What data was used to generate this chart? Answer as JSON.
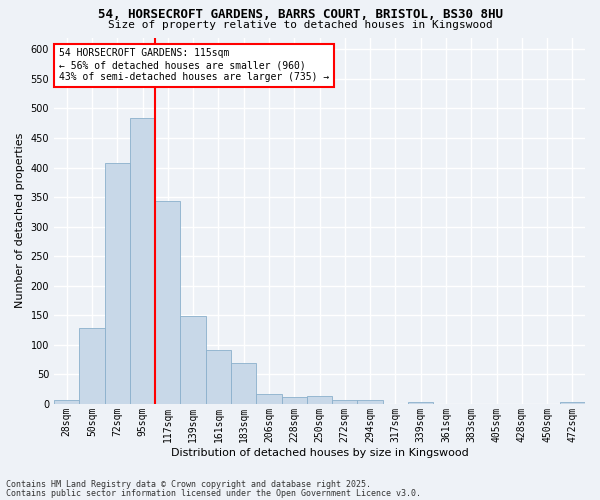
{
  "title_line1": "54, HORSECROFT GARDENS, BARRS COURT, BRISTOL, BS30 8HU",
  "title_line2": "Size of property relative to detached houses in Kingswood",
  "xlabel": "Distribution of detached houses by size in Kingswood",
  "ylabel": "Number of detached properties",
  "categories": [
    "28sqm",
    "50sqm",
    "72sqm",
    "95sqm",
    "117sqm",
    "139sqm",
    "161sqm",
    "183sqm",
    "206sqm",
    "228sqm",
    "250sqm",
    "272sqm",
    "294sqm",
    "317sqm",
    "339sqm",
    "361sqm",
    "383sqm",
    "405sqm",
    "428sqm",
    "450sqm",
    "472sqm"
  ],
  "values": [
    7,
    128,
    408,
    483,
    343,
    148,
    91,
    70,
    16,
    12,
    13,
    7,
    6,
    0,
    3,
    0,
    0,
    0,
    0,
    0,
    4
  ],
  "bar_color": "#c8d8e8",
  "bar_edgecolor": "#8ab0cc",
  "vline_color": "red",
  "vline_index": 3,
  "annotation_text": "54 HORSECROFT GARDENS: 115sqm\n← 56% of detached houses are smaller (960)\n43% of semi-detached houses are larger (735) →",
  "annotation_box_facecolor": "white",
  "annotation_box_edgecolor": "red",
  "ylim": [
    0,
    620
  ],
  "yticks": [
    0,
    50,
    100,
    150,
    200,
    250,
    300,
    350,
    400,
    450,
    500,
    550,
    600
  ],
  "footnote_line1": "Contains HM Land Registry data © Crown copyright and database right 2025.",
  "footnote_line2": "Contains public sector information licensed under the Open Government Licence v3.0.",
  "bg_color": "#eef2f7",
  "grid_color": "white",
  "title_fontsize": 9,
  "subtitle_fontsize": 8,
  "ylabel_fontsize": 8,
  "xlabel_fontsize": 8,
  "tick_fontsize": 7,
  "annot_fontsize": 7,
  "footnote_fontsize": 6
}
